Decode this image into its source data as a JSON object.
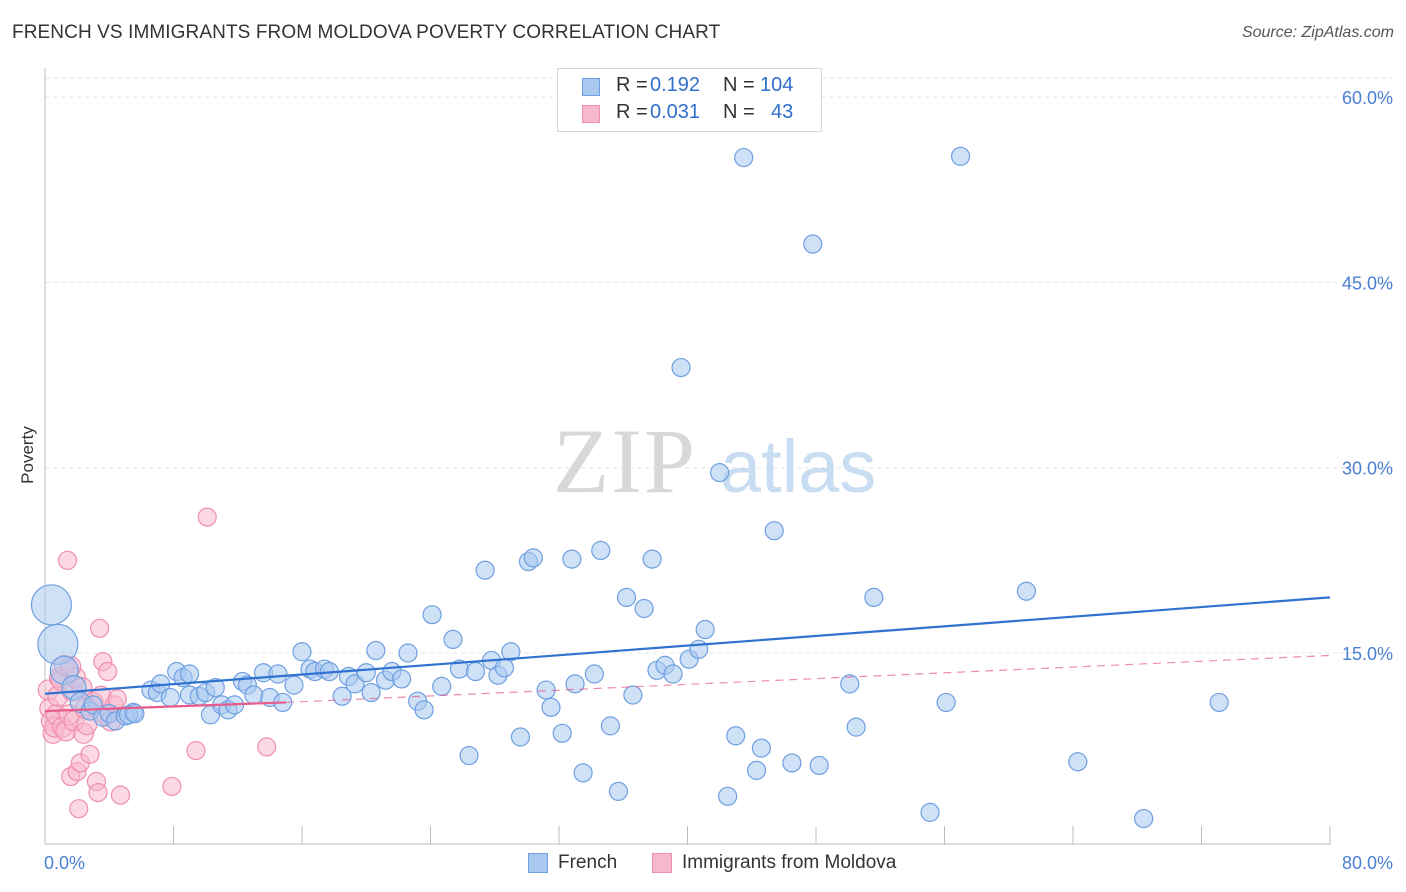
{
  "title": "FRENCH VS IMMIGRANTS FROM MOLDOVA POVERTY CORRELATION CHART",
  "source": "Source: ZipAtlas.com",
  "watermark": {
    "zip": "ZIP",
    "atlas": "atlas"
  },
  "legend": {
    "rows": [
      {
        "r_label": "R =",
        "r_value": "0.192",
        "n_label": "N =",
        "n_value": "104"
      },
      {
        "r_label": "R =",
        "r_value": "0.031",
        "n_label": "N =",
        "n_value": "43"
      }
    ]
  },
  "bottom_legend": {
    "french": "French",
    "moldova": "Immigrants from Moldova"
  },
  "colors": {
    "french_fill": "#a8c8f0",
    "french_stroke": "#6f9fe0",
    "french_line": "#2f72d0",
    "moldova_fill": "#f7b8cc",
    "moldova_stroke": "#ef8fae",
    "moldova_line": "#e75a8a",
    "tick_color": "#4a7fd4"
  },
  "chart_data": {
    "type": "scatter",
    "title": "FRENCH VS IMMIGRANTS FROM MOLDOVA POVERTY CORRELATION CHART",
    "xlabel": "",
    "ylabel": "Poverty",
    "xlim": [
      0,
      80
    ],
    "ylim": [
      0,
      60
    ],
    "x_tick_labels": [
      "0.0%",
      "80.0%"
    ],
    "y_ticks": [
      15,
      30,
      45,
      60
    ],
    "y_tick_labels": [
      "15.0%",
      "30.0%",
      "45.0%",
      "60.0%"
    ],
    "grid": true,
    "legend_position": "top-center",
    "series": [
      {
        "name": "French",
        "r": 0.192,
        "n": 104,
        "trend": {
          "x": [
            0,
            80
          ],
          "y": [
            11.7,
            19.5
          ]
        },
        "points": [
          [
            0.4,
            18.9,
            20
          ],
          [
            0.8,
            15.7,
            20
          ],
          [
            1.2,
            13.6,
            14
          ],
          [
            1.8,
            12.2,
            12
          ],
          [
            2.2,
            11.0,
            10
          ],
          [
            2.8,
            10.3,
            9
          ],
          [
            3.0,
            10.8,
            9
          ],
          [
            3.6,
            9.8,
            9
          ],
          [
            4.0,
            10.1,
            9
          ],
          [
            4.4,
            9.5,
            9
          ],
          [
            5.0,
            9.9,
            9
          ],
          [
            5.5,
            10.2,
            9
          ],
          [
            5.2,
            10.0,
            9
          ],
          [
            5.6,
            10.1,
            9
          ],
          [
            6.6,
            12.0,
            9
          ],
          [
            7.0,
            11.8,
            9
          ],
          [
            7.2,
            12.5,
            9
          ],
          [
            7.8,
            11.4,
            9
          ],
          [
            8.2,
            13.5,
            9
          ],
          [
            8.6,
            13.0,
            9
          ],
          [
            9.0,
            13.3,
            9
          ],
          [
            9.0,
            11.6,
            9
          ],
          [
            9.6,
            11.5,
            9
          ],
          [
            10.0,
            11.8,
            9
          ],
          [
            10.3,
            10.0,
            9
          ],
          [
            10.6,
            12.2,
            9
          ],
          [
            11.0,
            10.8,
            9
          ],
          [
            11.4,
            10.4,
            9
          ],
          [
            11.8,
            10.8,
            9
          ],
          [
            12.3,
            12.7,
            9
          ],
          [
            12.6,
            12.4,
            9
          ],
          [
            13.0,
            11.6,
            9
          ],
          [
            13.6,
            13.4,
            9
          ],
          [
            14.0,
            11.4,
            9
          ],
          [
            14.5,
            13.3,
            9
          ],
          [
            14.8,
            11.0,
            9
          ],
          [
            15.5,
            12.4,
            9
          ],
          [
            16.0,
            15.1,
            9
          ],
          [
            16.5,
            13.7,
            9
          ],
          [
            16.8,
            13.5,
            9
          ],
          [
            17.4,
            13.7,
            9
          ],
          [
            17.7,
            13.5,
            9
          ],
          [
            18.5,
            11.5,
            9
          ],
          [
            18.9,
            13.1,
            9
          ],
          [
            19.3,
            12.5,
            9
          ],
          [
            20.0,
            13.4,
            9
          ],
          [
            20.3,
            11.8,
            9
          ],
          [
            20.6,
            15.2,
            9
          ],
          [
            21.2,
            12.8,
            9
          ],
          [
            21.6,
            13.5,
            9
          ],
          [
            22.2,
            12.9,
            9
          ],
          [
            22.6,
            15.0,
            9
          ],
          [
            23.2,
            11.1,
            9
          ],
          [
            23.6,
            10.4,
            9
          ],
          [
            24.1,
            18.1,
            9
          ],
          [
            24.7,
            12.3,
            9
          ],
          [
            25.4,
            16.1,
            9
          ],
          [
            25.8,
            13.7,
            9
          ],
          [
            26.4,
            6.7,
            9
          ],
          [
            26.8,
            13.5,
            9
          ],
          [
            27.4,
            21.7,
            9
          ],
          [
            27.8,
            14.4,
            9
          ],
          [
            28.2,
            13.2,
            9
          ],
          [
            28.6,
            13.8,
            9
          ],
          [
            29.0,
            15.1,
            9
          ],
          [
            29.6,
            8.2,
            9
          ],
          [
            30.1,
            22.4,
            9
          ],
          [
            30.4,
            22.7,
            9
          ],
          [
            31.2,
            12.0,
            9
          ],
          [
            31.5,
            10.6,
            9
          ],
          [
            32.2,
            8.5,
            9
          ],
          [
            32.8,
            22.6,
            9
          ],
          [
            33.0,
            12.5,
            9
          ],
          [
            33.5,
            5.3,
            9
          ],
          [
            34.2,
            13.3,
            9
          ],
          [
            34.6,
            23.3,
            9
          ],
          [
            35.2,
            9.1,
            9
          ],
          [
            35.7,
            3.8,
            9
          ],
          [
            36.2,
            19.5,
            9
          ],
          [
            36.6,
            11.6,
            9
          ],
          [
            37.3,
            18.6,
            9
          ],
          [
            37.8,
            22.6,
            9
          ],
          [
            38.1,
            13.6,
            9
          ],
          [
            38.6,
            14.0,
            9
          ],
          [
            39.1,
            13.3,
            9
          ],
          [
            39.6,
            38.1,
            9
          ],
          [
            40.1,
            14.5,
            9
          ],
          [
            40.7,
            15.3,
            9
          ],
          [
            41.1,
            16.9,
            9
          ],
          [
            42.0,
            29.6,
            9
          ],
          [
            42.5,
            3.4,
            9
          ],
          [
            43.0,
            8.3,
            9
          ],
          [
            43.5,
            55.1,
            9
          ],
          [
            44.3,
            5.5,
            9
          ],
          [
            44.6,
            7.3,
            9
          ],
          [
            45.4,
            24.9,
            9
          ],
          [
            46.5,
            6.1,
            9
          ],
          [
            47.8,
            48.1,
            9
          ],
          [
            48.2,
            5.9,
            9
          ],
          [
            50.1,
            12.5,
            9
          ],
          [
            50.5,
            9.0,
            9
          ],
          [
            51.6,
            19.5,
            9
          ],
          [
            55.1,
            2.1,
            9
          ],
          [
            56.1,
            11.0,
            9
          ],
          [
            57.0,
            55.2,
            9
          ],
          [
            61.1,
            20.0,
            9
          ],
          [
            64.3,
            6.2,
            9
          ],
          [
            68.4,
            1.6,
            9
          ],
          [
            73.1,
            11.0,
            9
          ]
        ]
      },
      {
        "name": "Immigrants from Moldova",
        "r": 0.031,
        "n": 43,
        "trend": {
          "x": [
            0,
            15
          ],
          "y": [
            10.3,
            11.0
          ]
        },
        "trend_dashed": {
          "x": [
            15,
            80
          ],
          "y": [
            11.0,
            14.8
          ]
        },
        "points": [
          [
            0.2,
            12.0,
            10
          ],
          [
            0.3,
            10.5,
            10
          ],
          [
            0.4,
            9.5,
            10
          ],
          [
            0.5,
            8.5,
            10
          ],
          [
            0.6,
            9.0,
            10
          ],
          [
            0.7,
            10.0,
            10
          ],
          [
            0.8,
            11.5,
            10
          ],
          [
            0.9,
            13.0,
            10
          ],
          [
            1.0,
            12.8,
            10
          ],
          [
            1.1,
            9.0,
            10
          ],
          [
            1.2,
            14.0,
            10
          ],
          [
            1.3,
            8.7,
            10
          ],
          [
            1.4,
            22.5,
            9
          ],
          [
            1.5,
            10.0,
            10
          ],
          [
            1.6,
            5.0,
            9
          ],
          [
            1.7,
            11.9,
            10
          ],
          [
            1.8,
            9.5,
            10
          ],
          [
            1.9,
            13.0,
            10
          ],
          [
            2.0,
            5.4,
            9
          ],
          [
            2.1,
            2.4,
            9
          ],
          [
            2.2,
            6.1,
            9
          ],
          [
            2.3,
            12.2,
            10
          ],
          [
            2.4,
            8.5,
            10
          ],
          [
            2.5,
            10.5,
            10
          ],
          [
            2.6,
            9.2,
            10
          ],
          [
            2.8,
            6.8,
            9
          ],
          [
            3.0,
            11.0,
            10
          ],
          [
            3.2,
            4.6,
            9
          ],
          [
            3.3,
            3.7,
            9
          ],
          [
            3.4,
            17.0,
            9
          ],
          [
            3.5,
            11.5,
            10
          ],
          [
            3.6,
            14.3,
            9
          ],
          [
            3.8,
            10.0,
            10
          ],
          [
            3.9,
            13.5,
            9
          ],
          [
            4.1,
            9.5,
            10
          ],
          [
            4.3,
            10.8,
            9
          ],
          [
            4.5,
            11.3,
            9
          ],
          [
            4.7,
            3.5,
            9
          ],
          [
            7.9,
            4.2,
            9
          ],
          [
            9.4,
            7.1,
            9
          ],
          [
            10.1,
            26.0,
            9
          ],
          [
            13.8,
            7.4,
            9
          ],
          [
            1.6,
            13.9,
            10
          ]
        ]
      }
    ]
  }
}
